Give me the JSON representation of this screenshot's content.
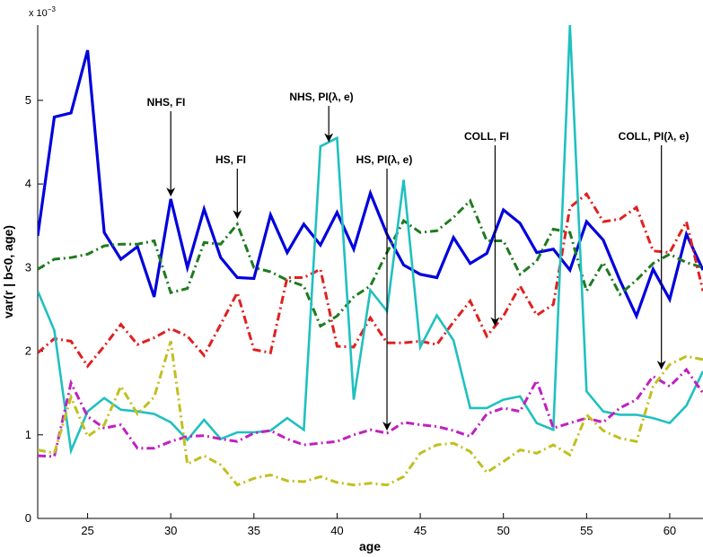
{
  "chart_data": {
    "type": "line",
    "title": "",
    "xlabel": "age",
    "ylabel": "var(r | b<0, age)",
    "y_exponent_label": "x 10",
    "y_exponent_power": "−3",
    "xlim": [
      22,
      62
    ],
    "ylim": [
      0,
      5.9
    ],
    "xticks": [
      25,
      30,
      35,
      40,
      45,
      50,
      55,
      60
    ],
    "yticks": [
      0,
      1,
      2,
      3,
      4,
      5
    ],
    "grid": false,
    "legend": "none",
    "x": [
      22,
      23,
      24,
      25,
      26,
      27,
      28,
      29,
      30,
      31,
      32,
      33,
      34,
      35,
      36,
      37,
      38,
      39,
      40,
      41,
      42,
      43,
      44,
      45,
      46,
      47,
      48,
      49,
      50,
      51,
      52,
      53,
      54,
      55,
      56,
      57,
      58,
      59,
      60,
      61,
      62
    ],
    "series": [
      {
        "color": "#0000dd",
        "style": "solid",
        "width": 3.2,
        "values": [
          3.38,
          4.8,
          4.85,
          5.6,
          3.42,
          3.1,
          3.25,
          2.65,
          3.82,
          3.0,
          3.7,
          3.12,
          2.88,
          2.87,
          3.63,
          3.18,
          3.52,
          3.27,
          3.66,
          3.22,
          3.89,
          3.4,
          3.03,
          2.92,
          2.88,
          3.36,
          3.05,
          3.17,
          3.69,
          3.53,
          3.18,
          3.22,
          2.97,
          3.55,
          3.33,
          2.85,
          2.42,
          2.98,
          2.62,
          3.4,
          2.97
        ]
      },
      {
        "color": "#1f7a1f",
        "style": "dashdot",
        "width": 3,
        "values": [
          2.98,
          3.1,
          3.12,
          3.16,
          3.26,
          3.28,
          3.28,
          3.32,
          2.7,
          2.75,
          3.3,
          3.28,
          3.52,
          3.0,
          2.95,
          2.85,
          2.78,
          2.3,
          2.42,
          2.65,
          2.78,
          3.18,
          3.56,
          3.42,
          3.44,
          3.6,
          3.8,
          3.32,
          3.32,
          2.92,
          3.08,
          3.46,
          3.42,
          2.72,
          3.06,
          2.68,
          2.85,
          3.05,
          3.16,
          3.06,
          3.0
        ]
      },
      {
        "color": "#e02020",
        "style": "dashdot",
        "width": 3,
        "values": [
          1.98,
          2.15,
          2.12,
          1.82,
          2.06,
          2.32,
          2.08,
          2.16,
          2.27,
          2.18,
          1.95,
          2.32,
          2.7,
          2.02,
          1.98,
          2.88,
          2.88,
          2.98,
          2.06,
          2.05,
          2.4,
          2.1,
          2.1,
          2.12,
          2.08,
          2.35,
          2.6,
          2.18,
          2.42,
          2.78,
          2.43,
          2.56,
          3.72,
          3.88,
          3.55,
          3.58,
          3.72,
          3.2,
          3.18,
          3.55,
          2.72
        ]
      },
      {
        "color": "#20c0c0",
        "style": "solid",
        "width": 2.6,
        "values": [
          2.72,
          2.25,
          0.81,
          1.28,
          1.44,
          1.3,
          1.28,
          1.25,
          1.15,
          0.94,
          1.18,
          0.95,
          1.03,
          1.03,
          1.05,
          1.2,
          1.06,
          4.45,
          4.55,
          1.42,
          2.73,
          2.48,
          4.05,
          2.05,
          2.43,
          2.13,
          1.32,
          1.32,
          1.42,
          1.46,
          1.14,
          1.06,
          5.9,
          1.52,
          1.28,
          1.24,
          1.24,
          1.2,
          1.14,
          1.35,
          1.76
        ]
      },
      {
        "color": "#c020c0",
        "style": "dashdot",
        "width": 3,
        "values": [
          0.75,
          0.74,
          1.62,
          1.22,
          1.08,
          1.12,
          0.84,
          0.84,
          0.92,
          0.98,
          0.99,
          0.95,
          0.92,
          1.02,
          1.05,
          0.95,
          0.88,
          0.9,
          0.92,
          1.0,
          1.06,
          1.02,
          1.15,
          1.12,
          1.1,
          1.05,
          0.98,
          1.25,
          1.32,
          1.28,
          1.65,
          1.08,
          1.14,
          1.2,
          1.15,
          1.32,
          1.42,
          1.7,
          1.58,
          1.78,
          1.5
        ]
      },
      {
        "color": "#c0c020",
        "style": "dashdot",
        "width": 3,
        "values": [
          0.82,
          0.78,
          1.45,
          0.98,
          1.12,
          1.58,
          1.25,
          1.45,
          2.12,
          0.65,
          0.75,
          0.64,
          0.4,
          0.48,
          0.52,
          0.45,
          0.44,
          0.5,
          0.43,
          0.4,
          0.42,
          0.4,
          0.5,
          0.78,
          0.88,
          0.9,
          0.8,
          0.55,
          0.68,
          0.82,
          0.78,
          0.88,
          0.76,
          1.24,
          1.05,
          0.96,
          0.92,
          1.58,
          1.84,
          1.94,
          1.9
        ]
      }
    ],
    "annotations": [
      {
        "label": "NHS, FI",
        "x": 30,
        "y": 3.85
      },
      {
        "label": "HS, FI",
        "x": 34,
        "y": 3.58
      },
      {
        "label": "NHS, PI(λ, e)",
        "x": 39.5,
        "y": 4.5
      },
      {
        "label": "HS, PI(λ, e)",
        "x": 43,
        "y": 1.05
      },
      {
        "label": "COLL, FI",
        "x": 49.5,
        "y": 2.3
      },
      {
        "label": "COLL, PI(λ, e)",
        "x": 59.5,
        "y": 1.78
      }
    ]
  }
}
